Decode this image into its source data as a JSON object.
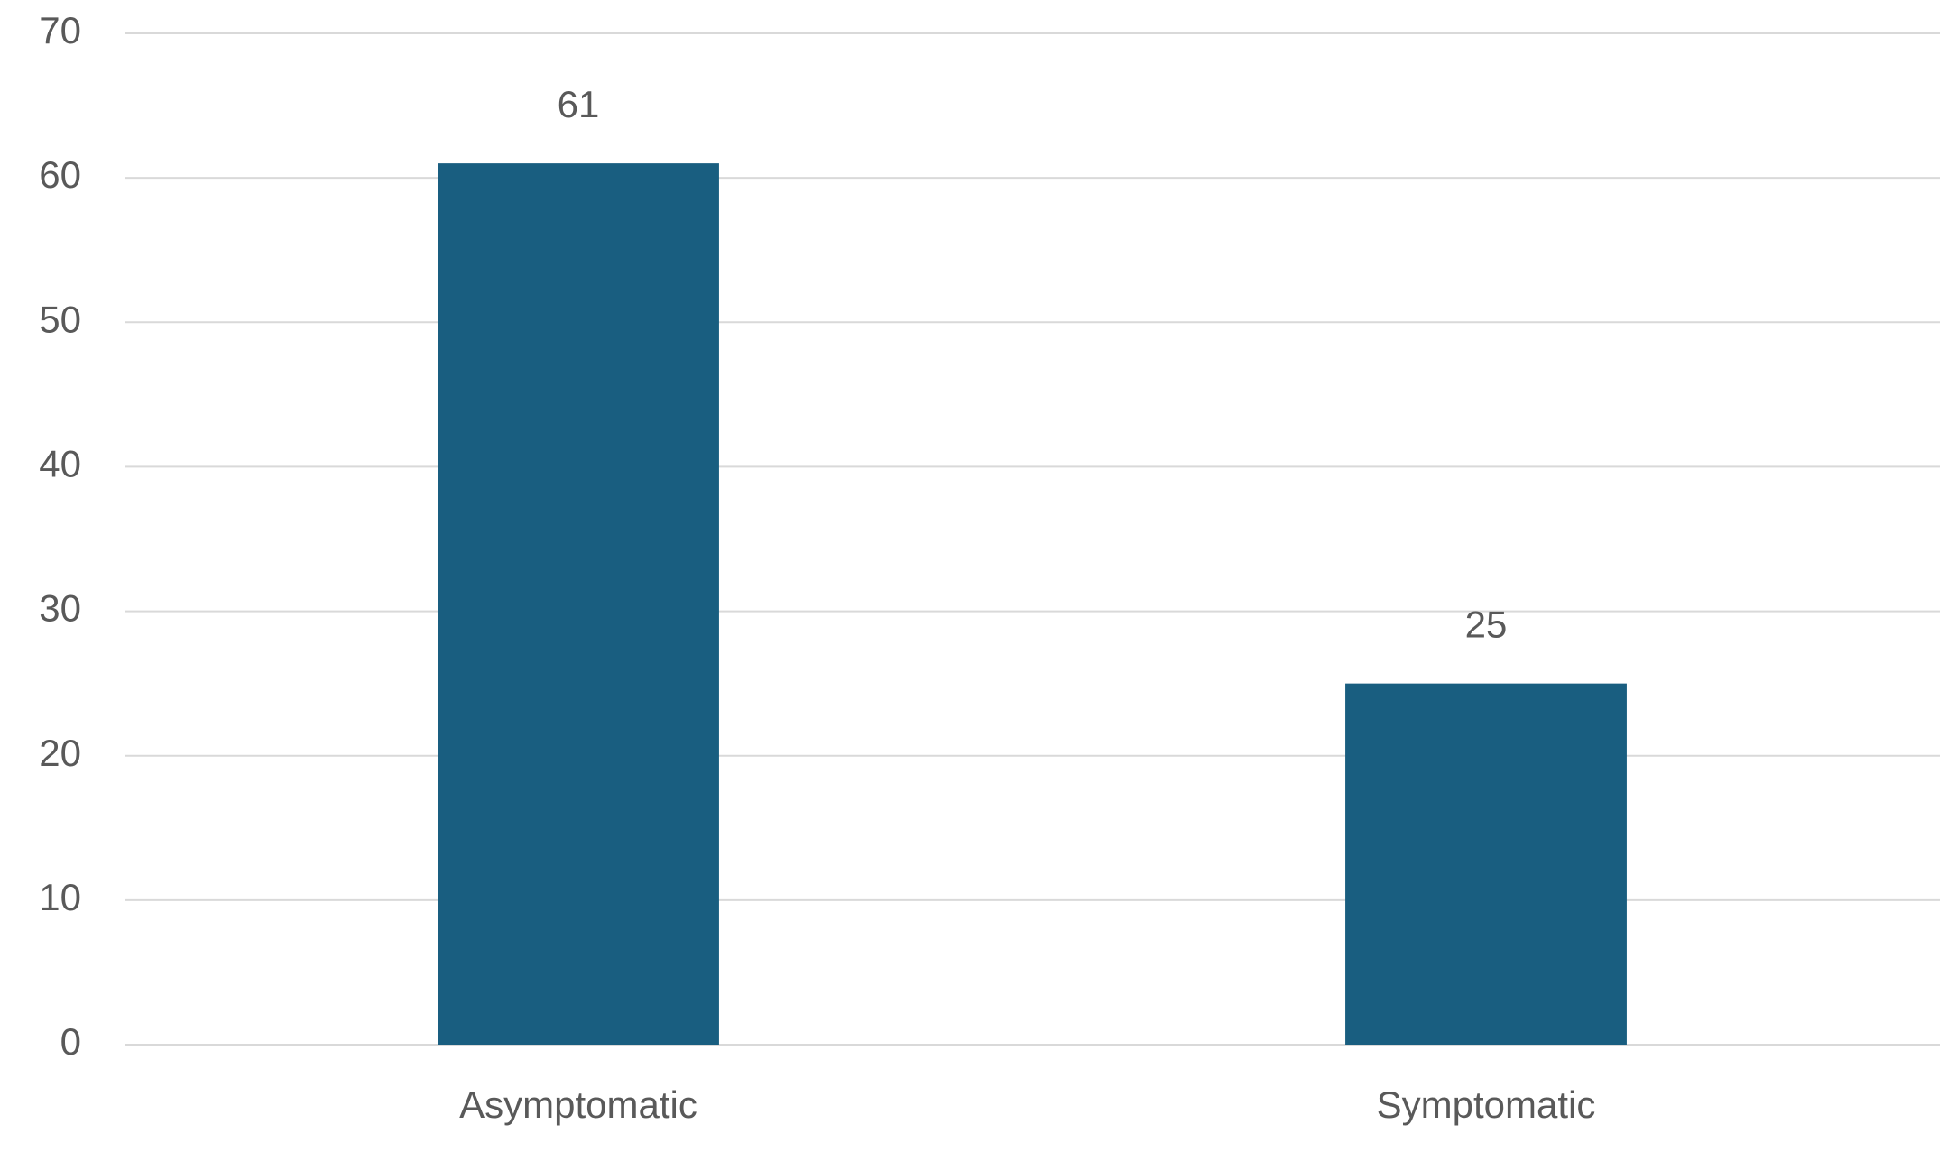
{
  "chart_data": {
    "type": "bar",
    "categories": [
      "Asymptomatic",
      "Symptomatic"
    ],
    "values": [
      61,
      25
    ],
    "color": "#195e80",
    "ylim": [
      0,
      70
    ],
    "yticks": [
      0,
      10,
      20,
      30,
      40,
      50,
      60,
      70
    ],
    "grid": true,
    "data_labels": true
  }
}
